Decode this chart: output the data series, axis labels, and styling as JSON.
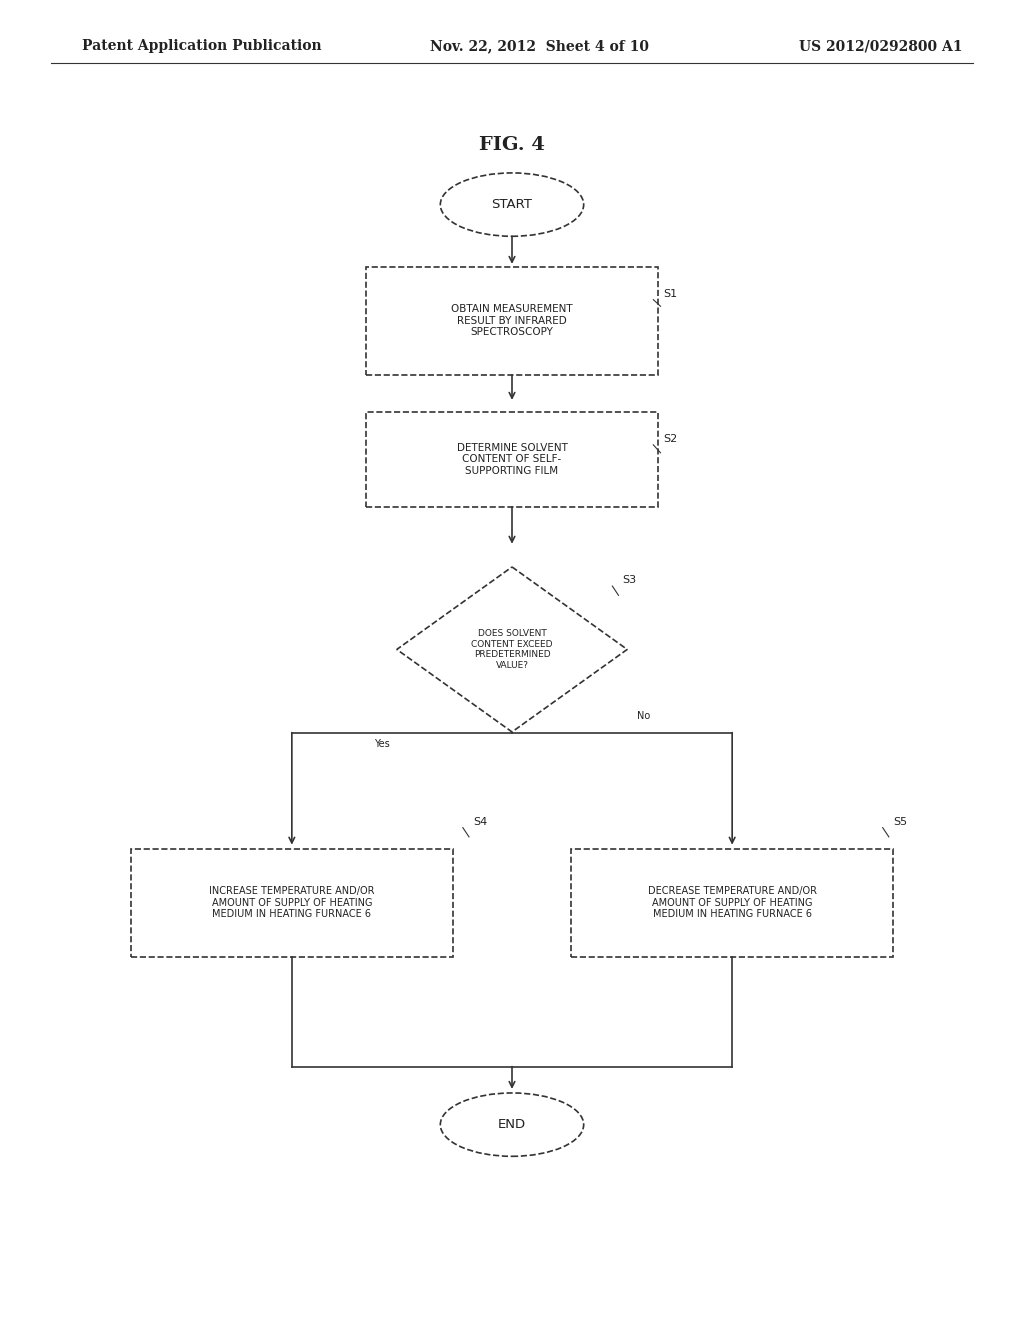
{
  "bg_color": "#ffffff",
  "header_left": "Patent Application Publication",
  "header_mid": "Nov. 22, 2012  Sheet 4 of 10",
  "header_right": "US 2012/0292800 A1",
  "fig_label": "FIG. 4",
  "line_color": "#333333",
  "text_color": "#222222",
  "font_size_nodes": 7.5,
  "font_size_header": 10,
  "font_size_fig": 14,
  "font_size_label": 8
}
